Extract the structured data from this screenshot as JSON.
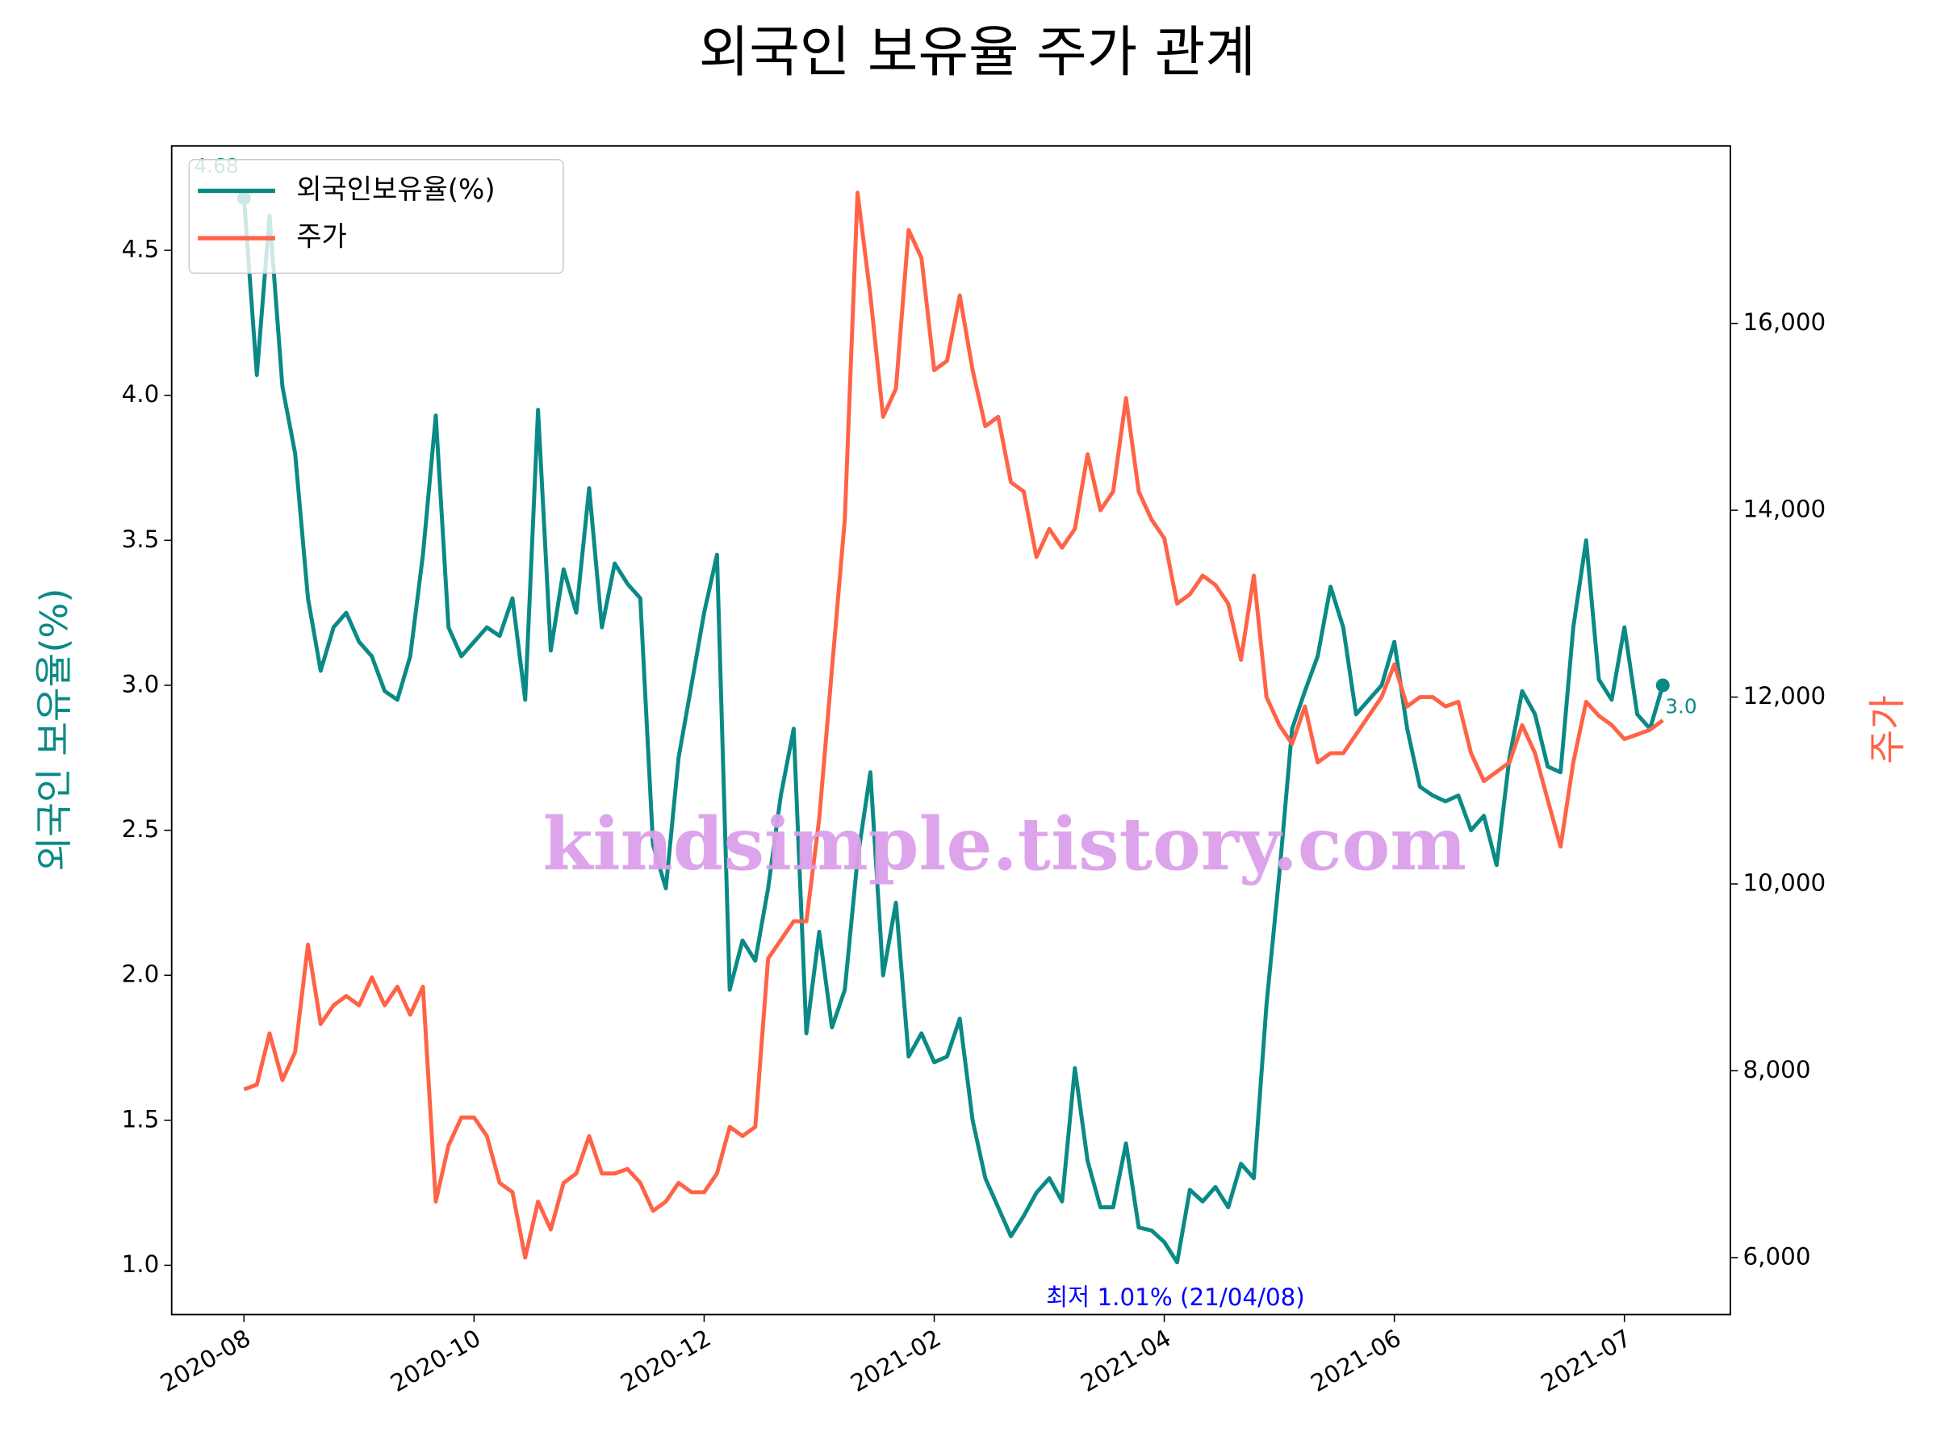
{
  "chart_data": {
    "type": "line",
    "title": "외국인 보유율 주가 관계",
    "y_label": "외국인 보유율(%)",
    "y2_label": "주가",
    "categories": [
      "2020-08",
      null,
      null,
      null,
      null,
      null,
      null,
      null,
      null,
      null,
      null,
      null,
      null,
      null,
      null,
      null,
      null,
      null,
      "2020-10",
      null,
      null,
      null,
      null,
      null,
      null,
      null,
      null,
      null,
      null,
      null,
      null,
      null,
      null,
      null,
      null,
      null,
      "2020-12",
      null,
      null,
      null,
      null,
      null,
      null,
      null,
      null,
      null,
      null,
      null,
      null,
      null,
      null,
      null,
      null,
      null,
      "2021-02",
      null,
      null,
      null,
      null,
      null,
      null,
      null,
      null,
      null,
      null,
      null,
      null,
      null,
      null,
      null,
      null,
      null,
      "2021-04",
      null,
      null,
      null,
      null,
      null,
      null,
      null,
      null,
      null,
      null,
      null,
      null,
      null,
      null,
      null,
      null,
      null,
      "2021-06",
      null,
      null,
      null,
      null,
      null,
      null,
      null,
      null,
      null,
      null,
      null,
      null,
      null,
      null,
      null,
      null,
      null,
      "2021-07",
      null,
      null,
      null
    ],
    "series": [
      {
        "name": "외국인보유율(%)",
        "color": "#0a8a86",
        "values": [
          4.68,
          4.07,
          4.62,
          4.03,
          3.8,
          3.3,
          3.05,
          3.2,
          3.25,
          3.15,
          3.1,
          2.98,
          2.95,
          3.1,
          3.45,
          3.93,
          3.2,
          3.1,
          3.15,
          3.2,
          3.17,
          3.3,
          2.95,
          3.95,
          3.12,
          3.4,
          3.25,
          3.68,
          3.2,
          3.42,
          3.35,
          3.3,
          2.45,
          2.3,
          2.75,
          3.0,
          3.25,
          3.45,
          1.95,
          2.12,
          2.05,
          2.3,
          2.62,
          2.85,
          1.8,
          2.15,
          1.82,
          1.95,
          2.4,
          2.7,
          2.0,
          2.25,
          1.72,
          1.8,
          1.7,
          1.72,
          1.85,
          1.5,
          1.3,
          1.2,
          1.1,
          1.17,
          1.25,
          1.3,
          1.22,
          1.68,
          1.36,
          1.2,
          1.2,
          1.42,
          1.13,
          1.12,
          1.08,
          1.01,
          1.26,
          1.22,
          1.27,
          1.2,
          1.35,
          1.3,
          1.9,
          2.35,
          2.85,
          2.98,
          3.1,
          3.34,
          3.2,
          2.9,
          2.95,
          3.0,
          3.15,
          2.85,
          2.65,
          2.62,
          2.6,
          2.62,
          2.5,
          2.55,
          2.38,
          2.75,
          2.98,
          2.9,
          2.72,
          2.7,
          3.2,
          3.5,
          3.02,
          2.95,
          3.2,
          2.9,
          2.85,
          3.0
        ],
        "value_labels": [
          "4.68",
          null,
          null,
          null,
          null,
          null,
          null,
          null,
          null,
          null,
          null,
          null,
          null,
          null,
          null,
          null,
          null,
          null,
          null,
          null,
          null,
          null,
          null,
          null,
          null,
          null,
          null,
          null,
          null,
          null,
          null,
          null,
          null,
          null,
          null,
          null,
          null,
          null,
          null,
          null,
          null,
          null,
          null,
          null,
          null,
          null,
          null,
          null,
          null,
          null,
          null,
          null,
          null,
          null,
          null,
          null,
          null,
          null,
          null,
          null,
          null,
          null,
          null,
          null,
          null,
          null,
          null,
          null,
          null,
          null,
          null,
          null,
          null,
          null,
          null,
          null,
          null,
          null,
          null,
          null,
          null,
          null,
          null,
          null,
          null,
          null,
          null,
          null,
          null,
          null,
          null,
          null,
          null,
          null,
          null,
          null,
          null,
          null,
          null,
          null,
          null,
          null,
          null,
          null,
          null,
          null,
          null,
          null,
          null,
          null,
          null,
          "3.0"
        ]
      },
      {
        "name": "주가",
        "color": "#ff6347",
        "axis": "y2",
        "values": [
          7800,
          7850,
          8400,
          7900,
          8200,
          9350,
          8500,
          8700,
          8800,
          8700,
          9000,
          8700,
          8900,
          8600,
          8900,
          6600,
          7200,
          7500,
          7500,
          7300,
          6800,
          6700,
          6000,
          6600,
          6300,
          6800,
          6900,
          7300,
          6900,
          6900,
          6950,
          6800,
          6500,
          6600,
          6800,
          6700,
          6700,
          6900,
          7400,
          7300,
          7400,
          9200,
          9400,
          9600,
          9600,
          10700,
          12300,
          13900,
          17400,
          16300,
          15000,
          15300,
          17000,
          16700,
          15500,
          15600,
          16300,
          15500,
          14900,
          15000,
          14300,
          14200,
          13500,
          13800,
          13600,
          13800,
          14600,
          14000,
          14200,
          15200,
          14200,
          13900,
          13700,
          13000,
          13100,
          13300,
          13200,
          13000,
          12400,
          13300,
          12000,
          11700,
          11500,
          11900,
          11300,
          11400,
          11400,
          11600,
          11800,
          12000,
          12350,
          11900,
          12000,
          12000,
          11900,
          11950,
          11400,
          11100,
          11200,
          11300,
          11700,
          11400,
          10900,
          10400,
          11300,
          11950,
          11800,
          11700,
          11550,
          11600,
          11650,
          11750
        ]
      }
    ],
    "ylim": [
      0.83,
      4.86
    ],
    "yticks": [
      {
        "value": 1,
        "label": "1.0"
      },
      1.5,
      {
        "value": 2,
        "label": "2.0"
      },
      2.5,
      {
        "value": 3,
        "label": "3.0"
      },
      3.5,
      {
        "value": 4,
        "label": "4.0"
      },
      4.5
    ],
    "y2lim": [
      5390,
      17900
    ],
    "y2ticks": [
      {
        "value": 6000,
        "label": "6,000"
      },
      {
        "value": 8000,
        "label": "8,000"
      },
      {
        "value": 10000,
        "label": "10,000"
      },
      {
        "value": 12000,
        "label": "12,000"
      },
      {
        "value": 14000,
        "label": "14,000"
      },
      {
        "value": 16000,
        "label": "16,000"
      }
    ],
    "legend": "upper left",
    "annotations": [
      {
        "text": "최저 1.01% (21/04/08)",
        "color": "#0000ff"
      }
    ],
    "watermark": "kindsimple.tistory.com"
  }
}
